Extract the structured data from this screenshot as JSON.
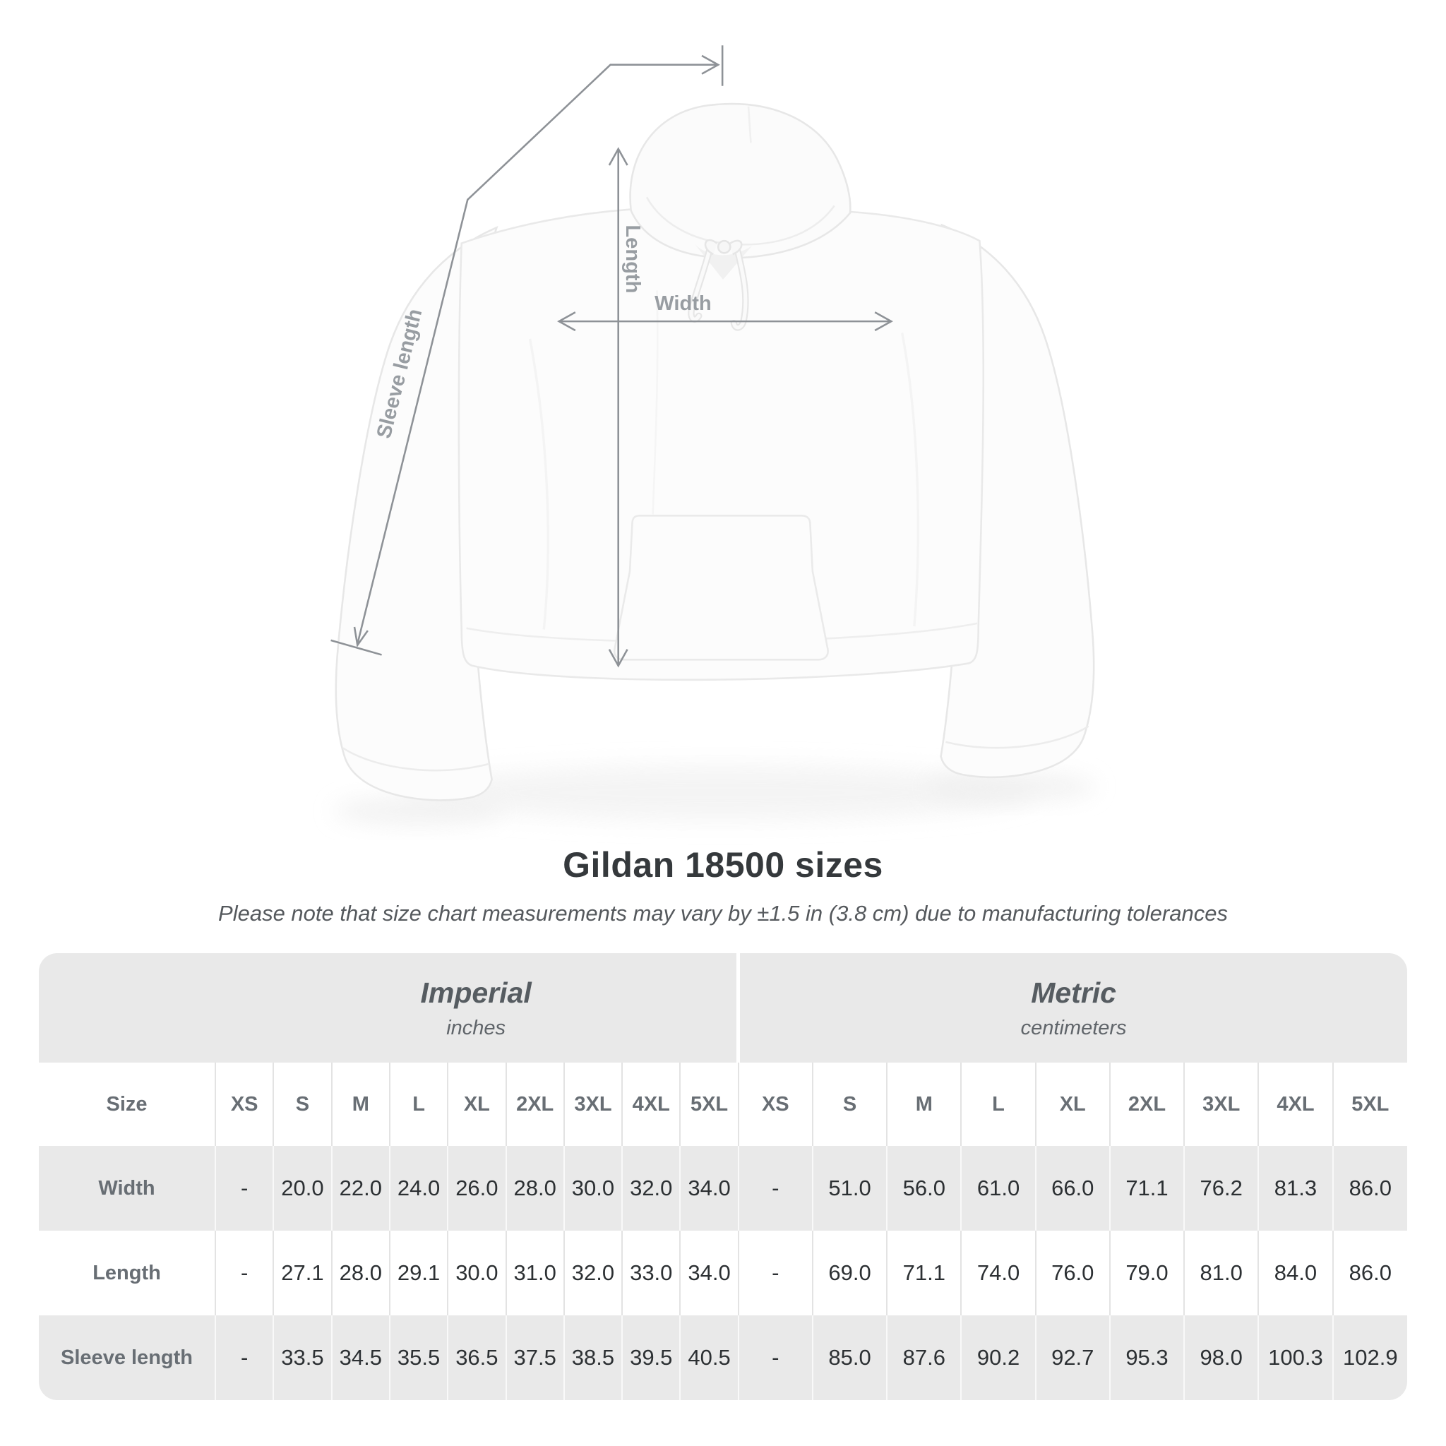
{
  "title": "Gildan 18500 sizes",
  "subtitle": "Please note that size chart measurements may vary by ±1.5 in (3.8 cm) due to manufacturing tolerances",
  "diagram": {
    "labels": {
      "length": "Length",
      "width": "Width",
      "sleeve": "Sleeve length"
    },
    "line_color": "#8e9297",
    "label_color": "#989da2",
    "garment": "white pullover hoodie, front view"
  },
  "table": {
    "size_header": "Size",
    "unit_groups": [
      {
        "name": "Imperial",
        "unit": "inches"
      },
      {
        "name": "Metric",
        "unit": "centimeters"
      }
    ],
    "sizes": [
      "XS",
      "S",
      "M",
      "L",
      "XL",
      "2XL",
      "3XL",
      "4XL",
      "5XL"
    ],
    "rows": [
      {
        "label": "Width",
        "imperial": [
          "-",
          "20.0",
          "22.0",
          "24.0",
          "26.0",
          "28.0",
          "30.0",
          "32.0",
          "34.0"
        ],
        "metric": [
          "-",
          "51.0",
          "56.0",
          "61.0",
          "66.0",
          "71.1",
          "76.2",
          "81.3",
          "86.0"
        ]
      },
      {
        "label": "Length",
        "imperial": [
          "-",
          "27.1",
          "28.0",
          "29.1",
          "30.0",
          "31.0",
          "32.0",
          "33.0",
          "34.0"
        ],
        "metric": [
          "-",
          "69.0",
          "71.1",
          "74.0",
          "76.0",
          "79.0",
          "81.0",
          "84.0",
          "86.0"
        ]
      },
      {
        "label": "Sleeve length",
        "imperial": [
          "-",
          "33.5",
          "34.5",
          "35.5",
          "36.5",
          "37.5",
          "38.5",
          "39.5",
          "40.5"
        ],
        "metric": [
          "-",
          "85.0",
          "87.6",
          "90.2",
          "92.7",
          "95.3",
          "98.0",
          "100.3",
          "102.9"
        ]
      }
    ],
    "colors": {
      "band_and_stripe_gray": "#e9e9e9",
      "header_text": "#686e74",
      "value_text": "#2c3033"
    }
  },
  "chart_data": {
    "type": "table",
    "title": "Gildan 18500 sizes",
    "note": "Please note that size chart measurements may vary by ±1.5 in (3.8 cm) due to manufacturing tolerances",
    "column_groups": [
      {
        "name": "Imperial",
        "unit": "inches",
        "sizes": [
          "XS",
          "S",
          "M",
          "L",
          "XL",
          "2XL",
          "3XL",
          "4XL",
          "5XL"
        ]
      },
      {
        "name": "Metric",
        "unit": "centimeters",
        "sizes": [
          "XS",
          "S",
          "M",
          "L",
          "XL",
          "2XL",
          "3XL",
          "4XL",
          "5XL"
        ]
      }
    ],
    "rows": [
      {
        "measurement": "Width",
        "imperial_in": [
          null,
          20.0,
          22.0,
          24.0,
          26.0,
          28.0,
          30.0,
          32.0,
          34.0
        ],
        "metric_cm": [
          null,
          51.0,
          56.0,
          61.0,
          66.0,
          71.1,
          76.2,
          81.3,
          86.0
        ]
      },
      {
        "measurement": "Length",
        "imperial_in": [
          null,
          27.1,
          28.0,
          29.1,
          30.0,
          31.0,
          32.0,
          33.0,
          34.0
        ],
        "metric_cm": [
          null,
          69.0,
          71.1,
          74.0,
          76.0,
          79.0,
          81.0,
          84.0,
          86.0
        ]
      },
      {
        "measurement": "Sleeve length",
        "imperial_in": [
          null,
          33.5,
          34.5,
          35.5,
          36.5,
          37.5,
          38.5,
          39.5,
          40.5
        ],
        "metric_cm": [
          null,
          85.0,
          87.6,
          90.2,
          92.7,
          95.3,
          98.0,
          100.3,
          102.9
        ]
      }
    ]
  }
}
